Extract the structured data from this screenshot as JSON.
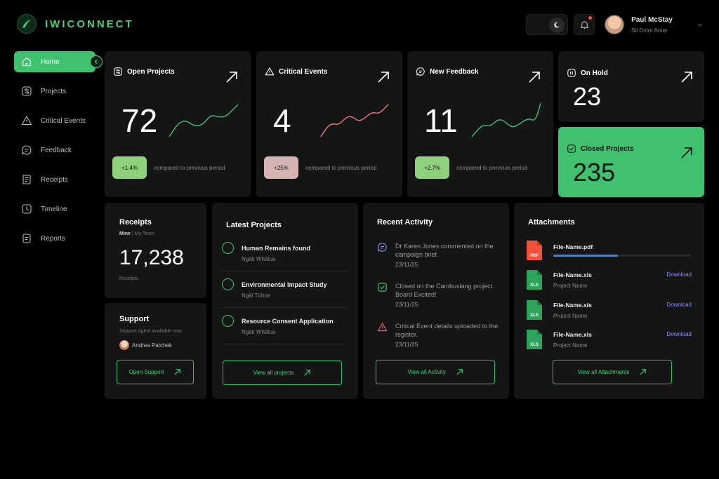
{
  "brand": {
    "name": "IWICONNECT"
  },
  "user": {
    "name": "Paul McStay",
    "subtitle": "Sit Dolor Amet"
  },
  "nav": [
    {
      "label": "Home",
      "icon": "home-icon",
      "active": true
    },
    {
      "label": "Projects",
      "icon": "sliders-icon"
    },
    {
      "label": "Critical Events",
      "icon": "warning-icon"
    },
    {
      "label": "Feedback",
      "icon": "chat-icon"
    },
    {
      "label": "Receipts",
      "icon": "receipt-icon"
    },
    {
      "label": "Timeline",
      "icon": "clock-icon"
    },
    {
      "label": "Reports",
      "icon": "report-icon"
    }
  ],
  "stats": {
    "open_projects": {
      "title": "Open Projects",
      "value": "72",
      "delta": "+1.4%",
      "compare": "compared to previous period",
      "color": "#3fc170"
    },
    "critical_events": {
      "title": "Critical Events",
      "value": "4",
      "delta": "+25%",
      "compare": "compared to previous period",
      "color": "#f07a7a"
    },
    "new_feedback": {
      "title": "New Feedback",
      "value": "11",
      "delta": "+2.7%",
      "compare": "compared to previous period",
      "color": "#3fc170"
    },
    "on_hold": {
      "title": "On Hold",
      "value": "23"
    },
    "closed_projects": {
      "title": "Closed Projects",
      "value": "235"
    }
  },
  "receipts": {
    "title": "Receipts",
    "tab_active": "Mine",
    "tab_separator": " | ",
    "tab_other": "My Team",
    "value": "17,238",
    "caption": "Receipts"
  },
  "support": {
    "title": "Support",
    "caption": "Support Agent available now",
    "agent": "Andrea Patchek",
    "button": "Open Support"
  },
  "latest_projects": {
    "title": "Latest Projects",
    "items": [
      {
        "title": "Human Remains found",
        "sub": "Ngāti Whātua"
      },
      {
        "title": "Environmental Impact Study",
        "sub": "Ngāi Tūhoe"
      },
      {
        "title": "Resource Consent Application",
        "sub": "Ngāti Whātua"
      }
    ],
    "button": "View all projects"
  },
  "recent_activity": {
    "title": "Recent Activity",
    "items": [
      {
        "icon": "chat-icon",
        "text": "Dr Karen Jones commented on the campaign brief.",
        "date": "23/11/25"
      },
      {
        "icon": "check-square-icon",
        "text": "Closed on the Cambuslang project. Board Excited!",
        "date": "23/11/25"
      },
      {
        "icon": "warning-icon",
        "text": "Critical Event details uploaded to the register.",
        "date": "23/11/25"
      }
    ],
    "button": "View all Activity"
  },
  "attachments": {
    "title": "Attachments",
    "items": [
      {
        "name": "File-Name.pdf",
        "type": "PDF",
        "progress": 0.47
      },
      {
        "name": "File-Name.xls",
        "type": "XLS",
        "sub": "Project Name",
        "action": "Download"
      },
      {
        "name": "File-Name.xls",
        "type": "XLS",
        "sub": "Project Name",
        "action": "Download"
      },
      {
        "name": "File-Name.xls",
        "type": "XLS",
        "sub": "Project Name",
        "action": "Download"
      }
    ],
    "button": "View all Attachments"
  }
}
